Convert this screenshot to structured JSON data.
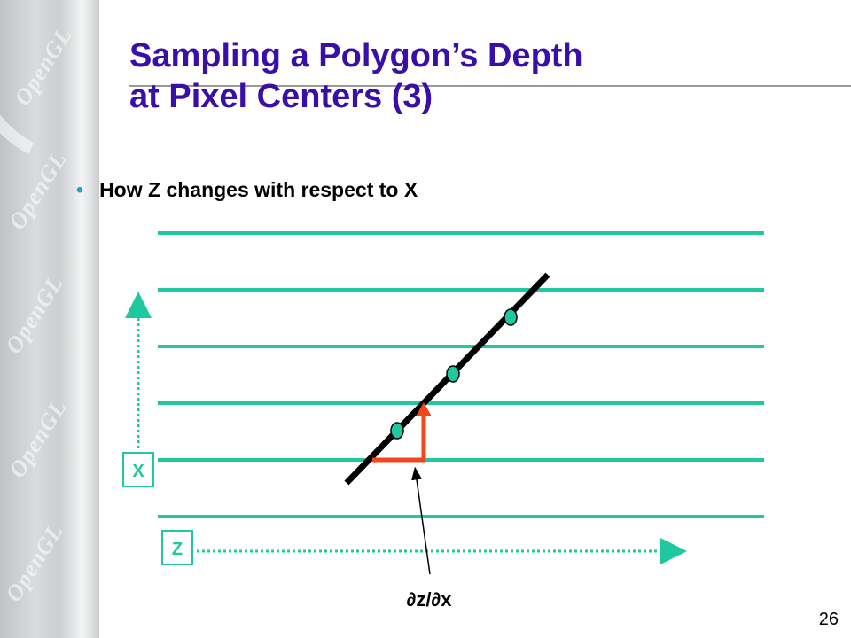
{
  "slide": {
    "title_line1": "Sampling a Polygon’s Depth",
    "title_line2": "at Pixel Centers (3)",
    "bullet": "How Z changes with respect to X",
    "page_number": "26"
  },
  "diagram": {
    "x_axis_label": "X",
    "z_axis_label": "Z",
    "derivative_label": "∂z/∂x",
    "sample_point_count": 3,
    "scanline_count": 6,
    "sidebar_watermark": "OpenGL",
    "colors": {
      "title": "#3a0ea8",
      "scanline": "#1fc9a0",
      "sample_point": "#1fc9a0",
      "polygon_edge": "#000000",
      "derivative_step": "#f0461e",
      "axis": "#1fc9a0",
      "bullet": "#1fa3d8"
    }
  }
}
